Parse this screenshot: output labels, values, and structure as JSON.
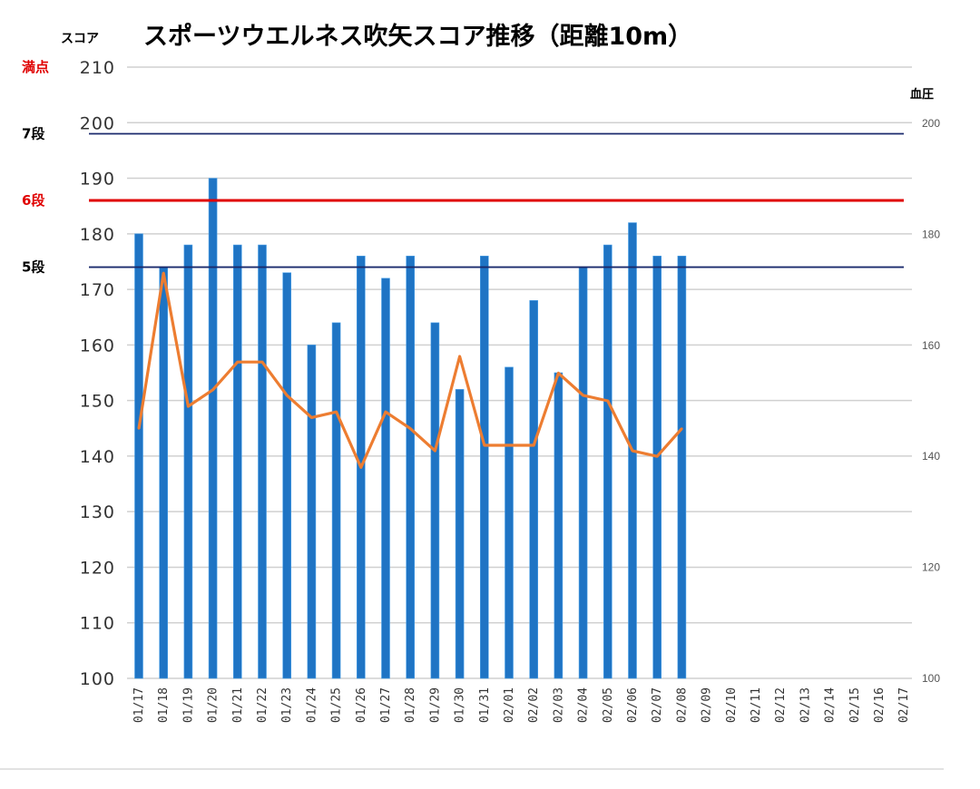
{
  "chart_data": {
    "type": "bar",
    "title": "スポーツウエルネス吹矢スコア推移（距離10m）",
    "ylabel": "スコア",
    "ylabel_right": "血圧",
    "ylim": [
      100,
      210
    ],
    "yticks": [
      100,
      110,
      120,
      130,
      140,
      150,
      160,
      170,
      180,
      190,
      200,
      210
    ],
    "ylim_right": [
      100,
      200
    ],
    "yticks_right": [
      100,
      120,
      140,
      160,
      180,
      200
    ],
    "grid": true,
    "colors": {
      "bar": "#1f74c4",
      "line": "#ed7d31",
      "navy": "#1a2a6c",
      "red": "#e00000",
      "grid": "#d0d0d0"
    },
    "categories": [
      "01/17",
      "01/18",
      "01/19",
      "01/20",
      "01/21",
      "01/22",
      "01/23",
      "01/24",
      "01/25",
      "01/26",
      "01/27",
      "01/28",
      "01/29",
      "01/30",
      "01/31",
      "02/01",
      "02/02",
      "02/03",
      "02/04",
      "02/05",
      "02/06",
      "02/07",
      "02/08",
      "02/09",
      "02/10",
      "02/11",
      "02/12",
      "02/13",
      "02/14",
      "02/15",
      "02/16",
      "02/17"
    ],
    "series": [
      {
        "type": "bar",
        "axis": "left",
        "values": [
          180,
          174,
          178,
          190,
          178,
          178,
          173,
          160,
          164,
          176,
          172,
          176,
          164,
          152,
          176,
          156,
          168,
          155,
          174,
          178,
          182,
          176,
          176,
          null,
          null,
          null,
          null,
          null,
          null,
          null,
          null,
          null
        ]
      },
      {
        "type": "line",
        "axis": "right",
        "values": [
          145,
          173,
          149,
          152,
          157,
          157,
          151,
          147,
          148,
          138,
          148,
          145,
          141,
          158,
          142,
          142,
          142,
          155,
          151,
          150,
          141,
          140,
          145,
          null,
          null,
          null,
          null,
          null,
          null,
          null,
          null,
          null
        ]
      }
    ],
    "reference_lines": [
      {
        "label": "満点",
        "value": 210,
        "color": "#e00000"
      },
      {
        "label": "7段",
        "value": 198,
        "color": "#000000"
      },
      {
        "label": "6段",
        "value": 186,
        "color": "#e00000"
      },
      {
        "label": "5段",
        "value": 174,
        "color": "#000000"
      }
    ]
  }
}
